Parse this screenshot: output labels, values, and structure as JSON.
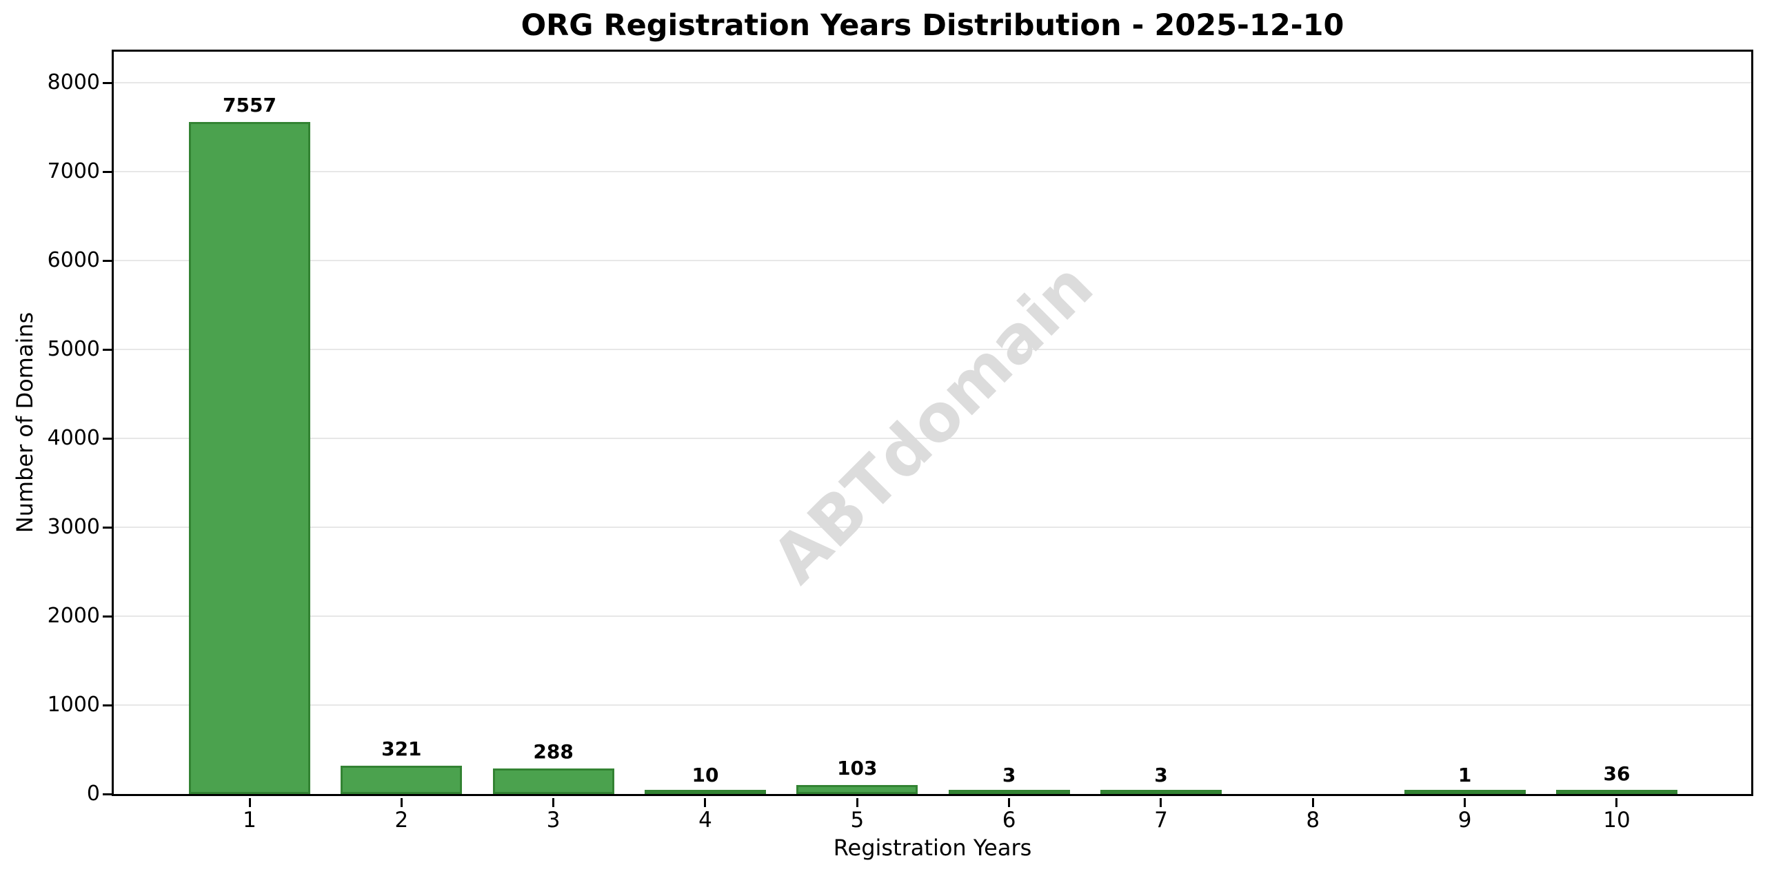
{
  "page": {
    "background_color": "#ffffff"
  },
  "chart_data": {
    "type": "bar",
    "title": "ORG Registration Years Distribution - 2025-12-10",
    "xlabel": "Registration Years",
    "ylabel": "Number of Domains",
    "categories": [
      "1",
      "2",
      "3",
      "4",
      "5",
      "6",
      "7",
      "8",
      "9",
      "10"
    ],
    "values": [
      7557,
      321,
      288,
      10,
      103,
      3,
      3,
      null,
      1,
      36
    ],
    "bar_labels": [
      "7557",
      "321",
      "288",
      "10",
      "103",
      "3",
      "3",
      "",
      "1",
      "36"
    ],
    "yticks": [
      0,
      1000,
      2000,
      3000,
      4000,
      5000,
      6000,
      7000,
      8000
    ],
    "ylim": [
      0,
      8350
    ],
    "xlim_note": "numeric x axis 1-10, category 8 has no bar and no label",
    "grid": "horizontal",
    "legend": "none",
    "colors": {
      "bar_fill": "#4ba24e",
      "bar_edge": "#338333",
      "gridline": "#e7e7e7",
      "axis": "#000000",
      "text": "#000000"
    },
    "watermark": {
      "text": "ABTdomain",
      "color": "#dcdcdc",
      "rotation_deg": -45,
      "font_size_px": 95
    }
  }
}
